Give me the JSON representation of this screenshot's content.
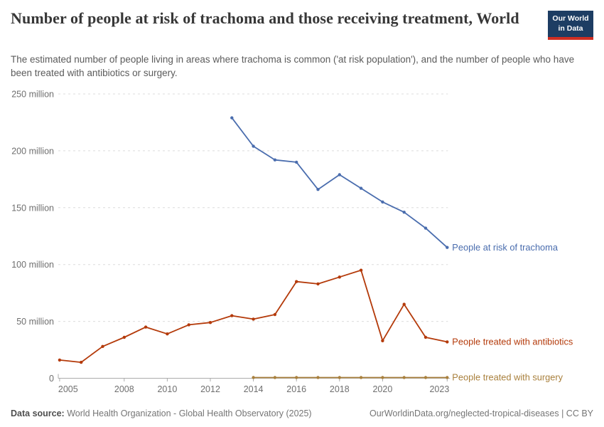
{
  "header": {
    "title": "Number of people at risk of trachoma and those receiving treatment, World",
    "subtitle": "The estimated number of people living in areas where trachoma is common ('at risk population'), and the number of people who have been treated with antibiotics or surgery.",
    "logo": {
      "line1": "Our World",
      "line2": "in Data",
      "background_color": "#1d3d63",
      "accent_color": "#cf2e22"
    }
  },
  "chart_data": {
    "type": "line",
    "title": "Number of people at risk of trachoma and those receiving treatment, World",
    "unit": "people (millions)",
    "xlabel": "",
    "ylabel": "",
    "ylim": [
      0,
      250
    ],
    "xlim": [
      2004.7,
      2023.5
    ],
    "grid": "horizontal-dashed",
    "legend": "end-of-line-labels",
    "yticks": [
      {
        "value": 0,
        "label": "0"
      },
      {
        "value": 50,
        "label": "50 million"
      },
      {
        "value": 100,
        "label": "100 million"
      },
      {
        "value": 150,
        "label": "150 million"
      },
      {
        "value": 200,
        "label": "200 million"
      },
      {
        "value": 250,
        "label": "250 million"
      }
    ],
    "xticks": [
      2005,
      2008,
      2010,
      2012,
      2014,
      2016,
      2018,
      2020,
      2023
    ],
    "series": [
      {
        "name": "People at risk of trachoma",
        "color": "#4a6dae",
        "years": [
          2013,
          2014,
          2015,
          2016,
          2017,
          2018,
          2019,
          2020,
          2021,
          2022,
          2023
        ],
        "values": [
          229,
          204,
          192,
          190,
          166,
          179,
          167,
          155,
          146,
          132,
          115
        ]
      },
      {
        "name": "People treated with antibiotics",
        "color": "#b43a0a",
        "years": [
          2005,
          2006,
          2007,
          2008,
          2009,
          2010,
          2011,
          2012,
          2013,
          2014,
          2015,
          2016,
          2017,
          2018,
          2019,
          2020,
          2021,
          2022,
          2023
        ],
        "values": [
          16,
          14,
          28,
          36,
          45,
          39,
          47,
          49,
          55,
          52,
          56,
          85,
          83,
          89,
          95,
          33,
          65,
          36,
          32
        ]
      },
      {
        "name": "People treated with surgery",
        "color": "#a9803d",
        "years": [
          2014,
          2015,
          2016,
          2017,
          2018,
          2019,
          2020,
          2021,
          2022,
          2023
        ],
        "values": [
          0.6,
          0.6,
          0.6,
          0.6,
          0.6,
          0.6,
          0.6,
          0.6,
          0.6,
          0.6
        ]
      }
    ],
    "axis_colors": {
      "tick_label": "#6f6f6f",
      "gridline": "#dcdcdc",
      "baseline": "#ababab"
    }
  },
  "footer": {
    "source_label": "Data source:",
    "source_text": "World Health Organization - Global Health Observatory (2025)",
    "url": "OurWorldinData.org/neglected-tropical-diseases",
    "separator": "|",
    "license": "CC BY"
  }
}
